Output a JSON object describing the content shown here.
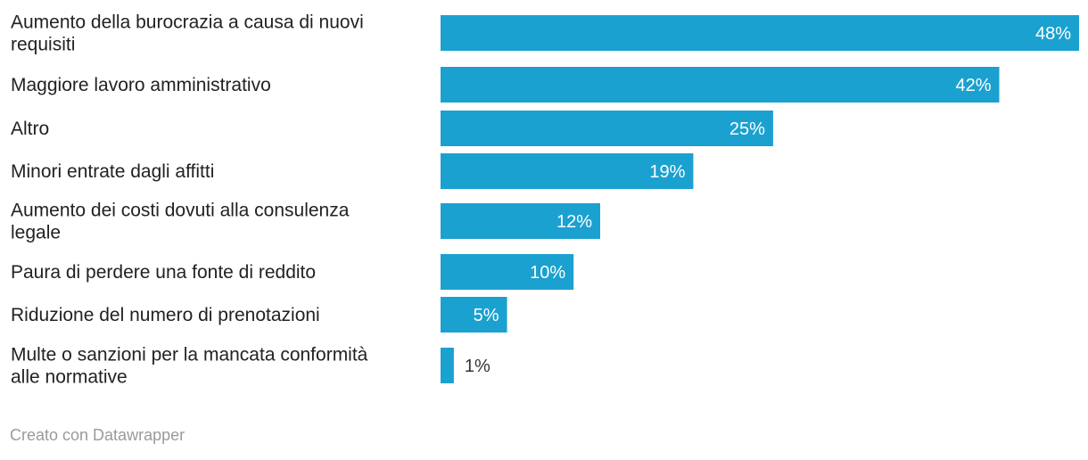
{
  "chart_data": {
    "type": "bar",
    "orientation": "horizontal",
    "categories": [
      "Aumento della burocrazia a causa di nuovi requisiti",
      "Maggiore lavoro amministrativo",
      "Altro",
      "Minori entrate dagli affitti",
      "Aumento dei costi dovuti alla consulenza legale",
      "Paura di perdere una fonte di reddito",
      "Riduzione del numero di prenotazioni",
      "Multe o sanzioni per la mancata conformità alle normative"
    ],
    "category_lines": [
      [
        "Aumento della burocrazia a causa di nuovi",
        "requisiti"
      ],
      [
        "Maggiore lavoro amministrativo"
      ],
      [
        "Altro"
      ],
      [
        "Minori entrate dagli affitti"
      ],
      [
        "Aumento dei costi dovuti alla consulenza",
        "legale"
      ],
      [
        "Paura di perdere una fonte di reddito"
      ],
      [
        "Riduzione del numero di prenotazioni"
      ],
      [
        "Multe o sanzioni per la mancata conformità",
        "alle normative"
      ]
    ],
    "values": [
      48,
      42,
      25,
      19,
      12,
      10,
      5,
      1
    ],
    "value_labels": [
      "48%",
      "42%",
      "25%",
      "19%",
      "12%",
      "10%",
      "5%",
      "1%"
    ],
    "unit": "%",
    "xlim": [
      0,
      48
    ],
    "grid": false,
    "bar_color": "#1ba1d0",
    "label_inside_color": "#ffffff",
    "label_outside_color": "#333333"
  },
  "footer": {
    "text": "Creato con Datawrapper"
  }
}
